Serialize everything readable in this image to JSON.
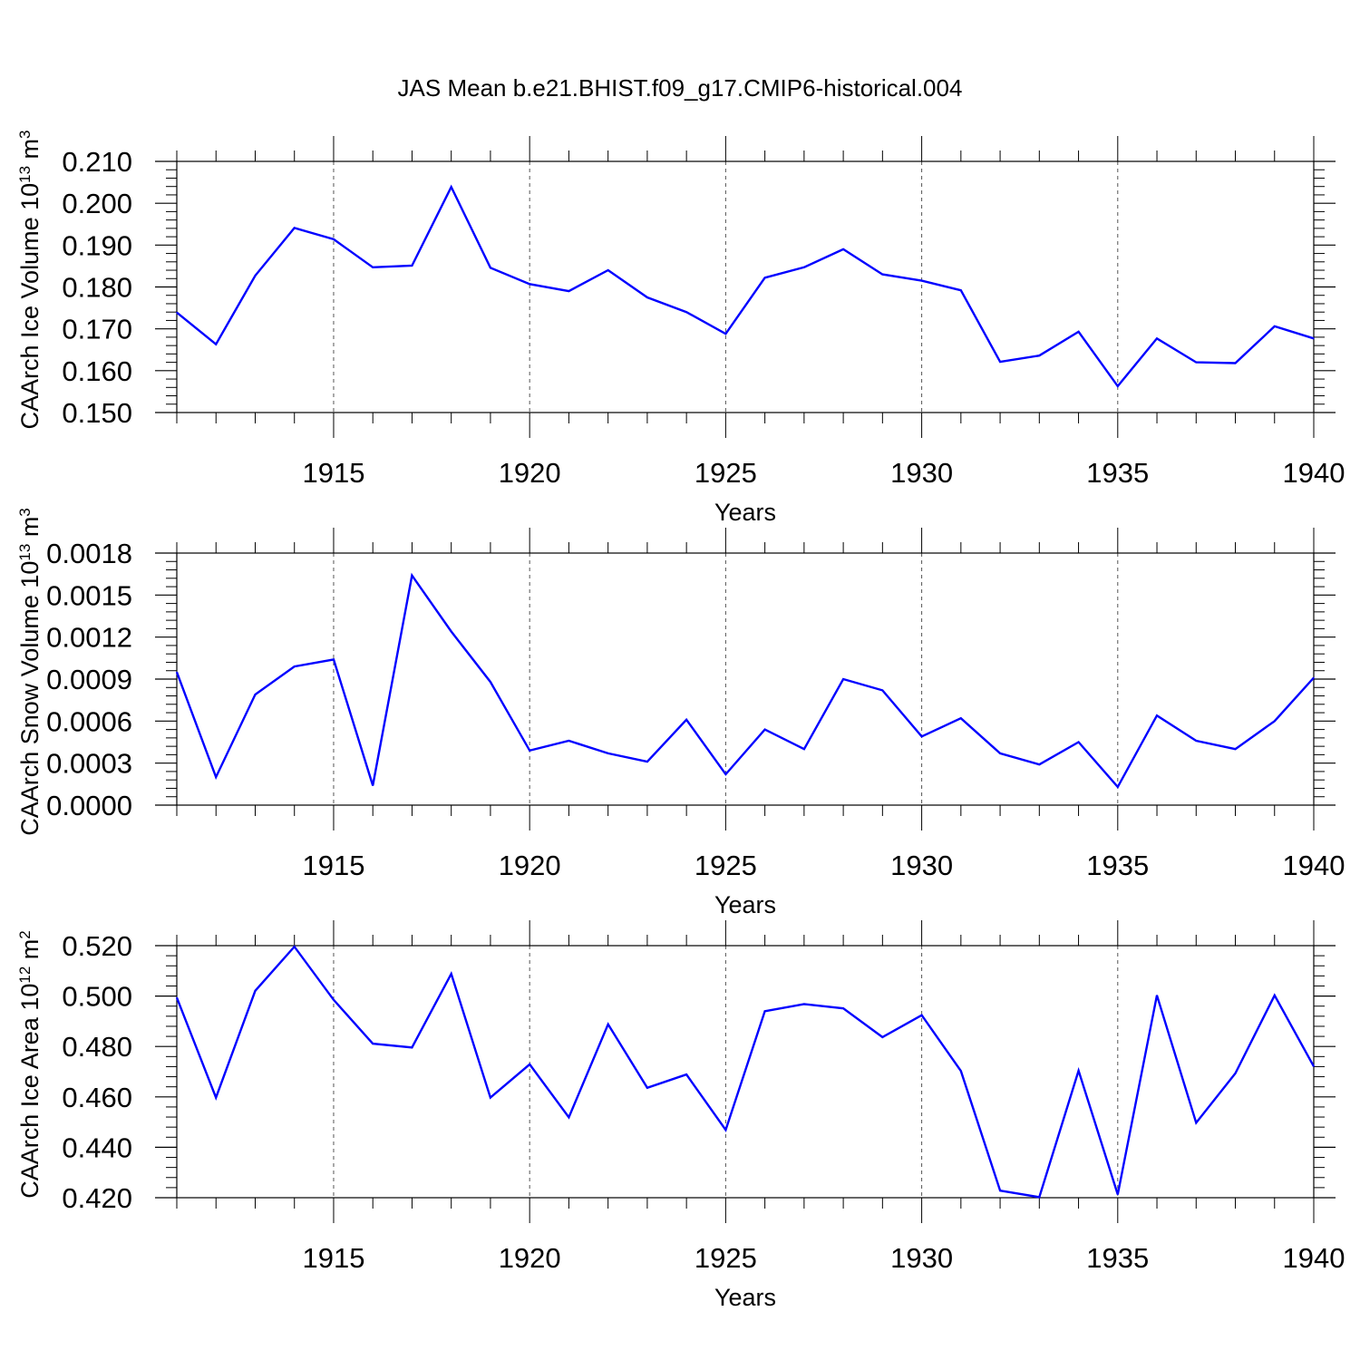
{
  "title": "JAS Mean b.e21.BHIST.f09_g17.CMIP6-historical.004",
  "colors": {
    "line": "#0000ff",
    "axis": "#000000",
    "grid": "#555555"
  },
  "chart_data": [
    {
      "type": "line",
      "ylabel_main": "CAArch Ice Volume 10",
      "ylabel_exp": "13",
      "ylabel_unit": " m",
      "ylabel_unit_exp": "3",
      "xlabel": "Years",
      "xlim": [
        1911,
        1940
      ],
      "ylim": [
        0.15,
        0.21
      ],
      "yticks": [
        0.15,
        0.16,
        0.17,
        0.18,
        0.19,
        0.2,
        0.21
      ],
      "ytick_labels": [
        "0.150",
        "0.160",
        "0.170",
        "0.180",
        "0.190",
        "0.200",
        "0.210"
      ],
      "xticks": [
        1915,
        1920,
        1925,
        1930,
        1935,
        1940
      ],
      "xtick_labels": [
        "1915",
        "1920",
        "1925",
        "1930",
        "1935",
        "1940"
      ],
      "x": [
        1911,
        1912,
        1913,
        1914,
        1915,
        1916,
        1917,
        1918,
        1919,
        1920,
        1921,
        1922,
        1923,
        1924,
        1925,
        1926,
        1927,
        1928,
        1929,
        1930,
        1931,
        1932,
        1933,
        1934,
        1935,
        1936,
        1937,
        1938,
        1939,
        1940
      ],
      "series": [
        {
          "name": "Ice Volume",
          "values": [
            0.1739,
            0.1663,
            0.1827,
            0.1941,
            0.1914,
            0.1847,
            0.1851,
            0.2039,
            0.1846,
            0.1807,
            0.179,
            0.184,
            0.1775,
            0.174,
            0.1688,
            0.1822,
            0.1847,
            0.189,
            0.183,
            0.1815,
            0.1792,
            0.1621,
            0.1636,
            0.1693,
            0.1563,
            0.1677,
            0.162,
            0.1618,
            0.1706,
            0.1677
          ]
        }
      ]
    },
    {
      "type": "line",
      "ylabel_main": "CAArch Snow Volume 10",
      "ylabel_exp": "13",
      "ylabel_unit": " m",
      "ylabel_unit_exp": "3",
      "xlabel": "Years",
      "xlim": [
        1911,
        1940
      ],
      "ylim": [
        0.0,
        0.0018
      ],
      "yticks": [
        0.0,
        0.0003,
        0.0006,
        0.0009,
        0.0012,
        0.0015,
        0.0018
      ],
      "ytick_labels": [
        "0.0000",
        "0.0003",
        "0.0006",
        "0.0009",
        "0.0012",
        "0.0015",
        "0.0018"
      ],
      "xticks": [
        1915,
        1920,
        1925,
        1930,
        1935,
        1940
      ],
      "xtick_labels": [
        "1915",
        "1920",
        "1925",
        "1930",
        "1935",
        "1940"
      ],
      "x": [
        1911,
        1912,
        1913,
        1914,
        1915,
        1916,
        1917,
        1918,
        1919,
        1920,
        1921,
        1922,
        1923,
        1924,
        1925,
        1926,
        1927,
        1928,
        1929,
        1930,
        1931,
        1932,
        1933,
        1934,
        1935,
        1936,
        1937,
        1938,
        1939,
        1940
      ],
      "series": [
        {
          "name": "Snow Volume",
          "values": [
            0.00095,
            0.0002,
            0.00079,
            0.00099,
            0.00104,
            0.00014,
            0.00164,
            0.00124,
            0.00088,
            0.00039,
            0.00046,
            0.00037,
            0.00031,
            0.00061,
            0.00022,
            0.00054,
            0.0004,
            0.0009,
            0.00082,
            0.00049,
            0.00062,
            0.00037,
            0.00029,
            0.00045,
            0.00013,
            0.00064,
            0.00046,
            0.0004,
            0.0006,
            0.00091
          ]
        }
      ]
    },
    {
      "type": "line",
      "ylabel_main": "CAArch Ice Area 10",
      "ylabel_exp": "12",
      "ylabel_unit": " m",
      "ylabel_unit_exp": "2",
      "xlabel": "Years",
      "xlim": [
        1911,
        1940
      ],
      "ylim": [
        0.42,
        0.52
      ],
      "yticks": [
        0.42,
        0.44,
        0.46,
        0.48,
        0.5,
        0.52
      ],
      "ytick_labels": [
        "0.420",
        "0.440",
        "0.460",
        "0.480",
        "0.500",
        "0.520"
      ],
      "xticks": [
        1915,
        1920,
        1925,
        1930,
        1935,
        1940
      ],
      "xtick_labels": [
        "1915",
        "1920",
        "1925",
        "1930",
        "1935",
        "1940"
      ],
      "x": [
        1911,
        1912,
        1913,
        1914,
        1915,
        1916,
        1917,
        1918,
        1919,
        1920,
        1921,
        1922,
        1923,
        1924,
        1925,
        1926,
        1927,
        1928,
        1929,
        1930,
        1931,
        1932,
        1933,
        1934,
        1935,
        1936,
        1937,
        1938,
        1939,
        1940
      ],
      "series": [
        {
          "name": "Ice Area",
          "values": [
            0.4994,
            0.4597,
            0.5021,
            0.5196,
            0.4985,
            0.4811,
            0.4796,
            0.5088,
            0.4597,
            0.4729,
            0.4519,
            0.4888,
            0.4636,
            0.4689,
            0.4469,
            0.494,
            0.4968,
            0.4951,
            0.4837,
            0.4924,
            0.4703,
            0.4228,
            0.4202,
            0.4704,
            0.4213,
            0.5003,
            0.4497,
            0.4693,
            0.5003,
            0.4721
          ]
        }
      ]
    }
  ]
}
